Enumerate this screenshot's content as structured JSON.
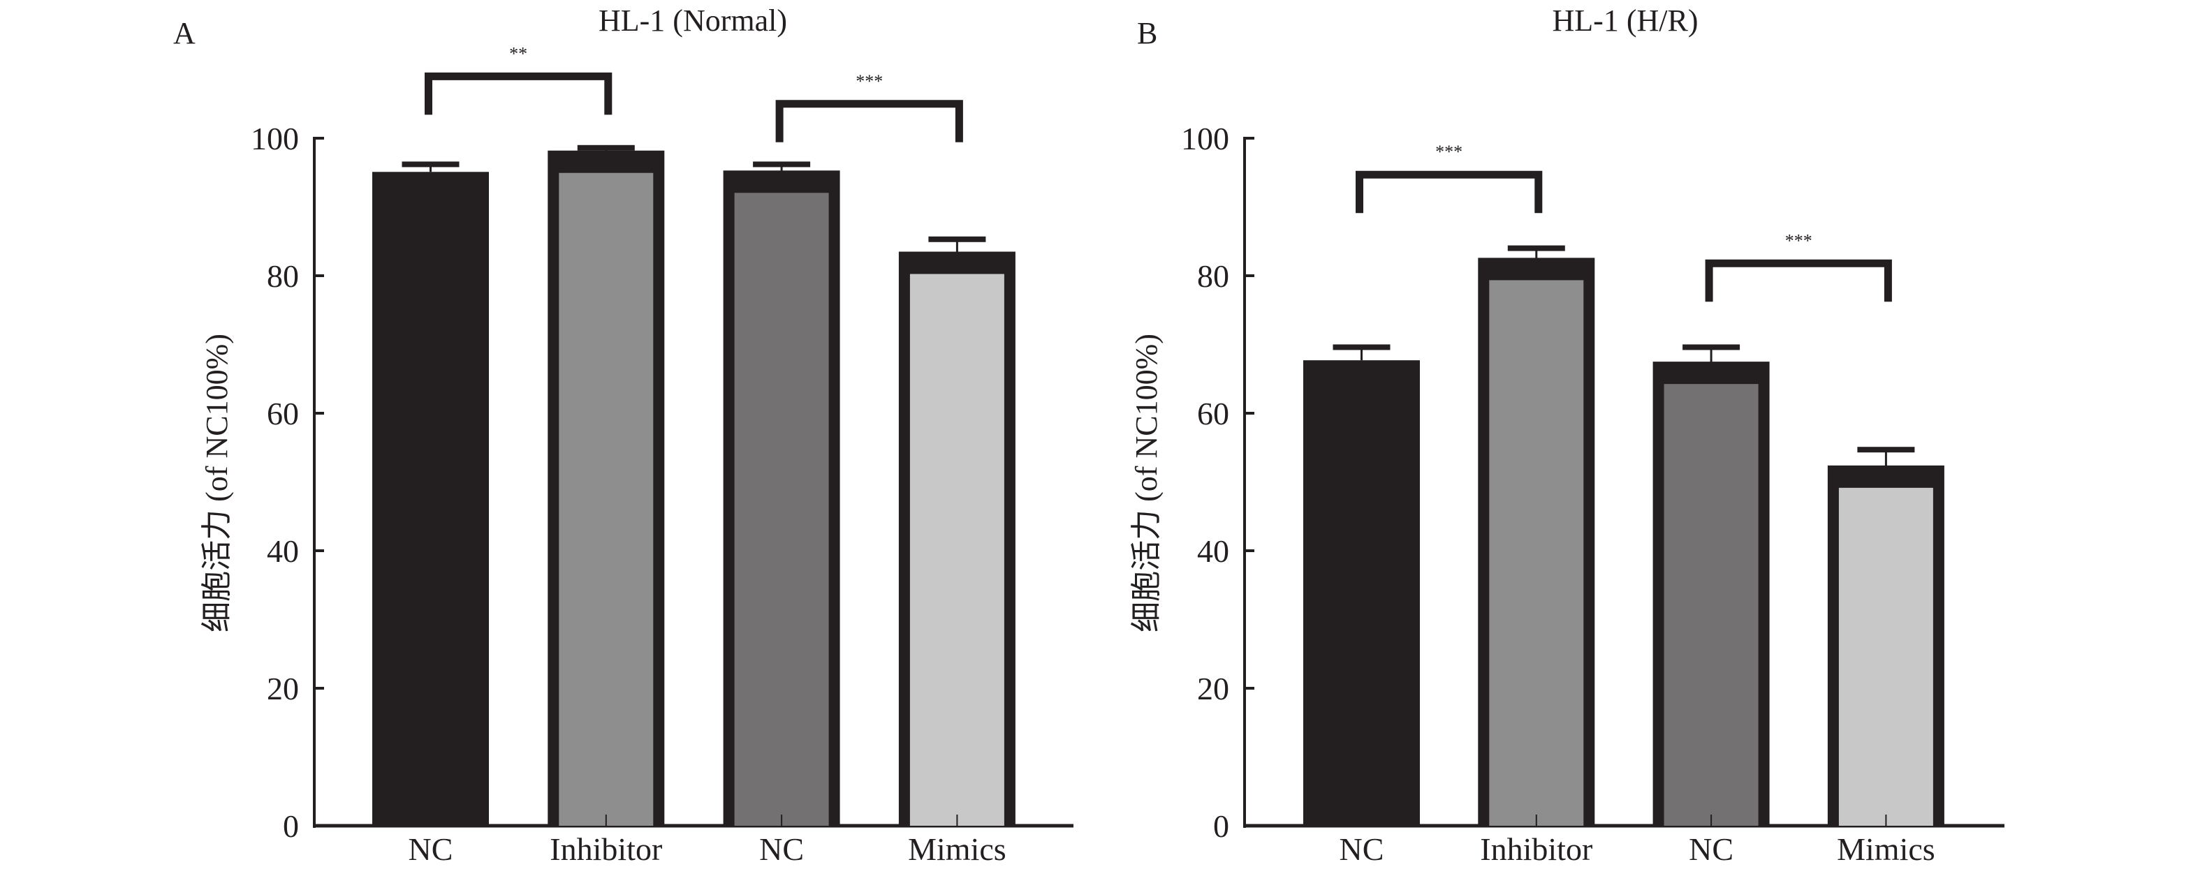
{
  "chart_data": [
    {
      "type": "bar",
      "panel_label": "A",
      "title": "HL-1 (Normal)",
      "xlabel": "",
      "ylabel": "细胞活力 (of NC100%)",
      "ylim": [
        0,
        100
      ],
      "yticks": [
        "0",
        "20",
        "40",
        "60",
        "80",
        "100"
      ],
      "grid": false,
      "legend": null,
      "categories": [
        "NC",
        "Inhibitor",
        "NC",
        "Mimics"
      ],
      "values": [
        95.1,
        98.2,
        95.3,
        83.5
      ],
      "error_upper": [
        1.1,
        0.4,
        0.9,
        1.8
      ],
      "colors": [
        "#231f20",
        "#8f8e8f",
        "#737172",
        "#c8c8c8"
      ],
      "significance": [
        {
          "from": 0,
          "to": 1,
          "label": "**",
          "level": 109
        },
        {
          "from": 2,
          "to": 3,
          "label": "***",
          "level": 105
        }
      ]
    },
    {
      "type": "bar",
      "panel_label": "B",
      "title": "HL-1 (H/R)",
      "xlabel": "",
      "ylabel": "细胞活力 (of NC100%)",
      "ylim": [
        0,
        100
      ],
      "yticks": [
        "0",
        "20",
        "40",
        "60",
        "80",
        "100"
      ],
      "grid": false,
      "legend": null,
      "categories": [
        "NC",
        "Inhibitor",
        "NC",
        "Mimics"
      ],
      "values": [
        67.7,
        82.6,
        67.5,
        52.4
      ],
      "error_upper": [
        1.9,
        1.4,
        2.1,
        2.3
      ],
      "colors": [
        "#231f20",
        "#8f8e8f",
        "#737172",
        "#c8c8c8"
      ],
      "significance": [
        {
          "from": 0,
          "to": 1,
          "label": "***",
          "level": 94.7
        },
        {
          "from": 2,
          "to": 3,
          "label": "***",
          "level": 81.8
        }
      ]
    }
  ]
}
